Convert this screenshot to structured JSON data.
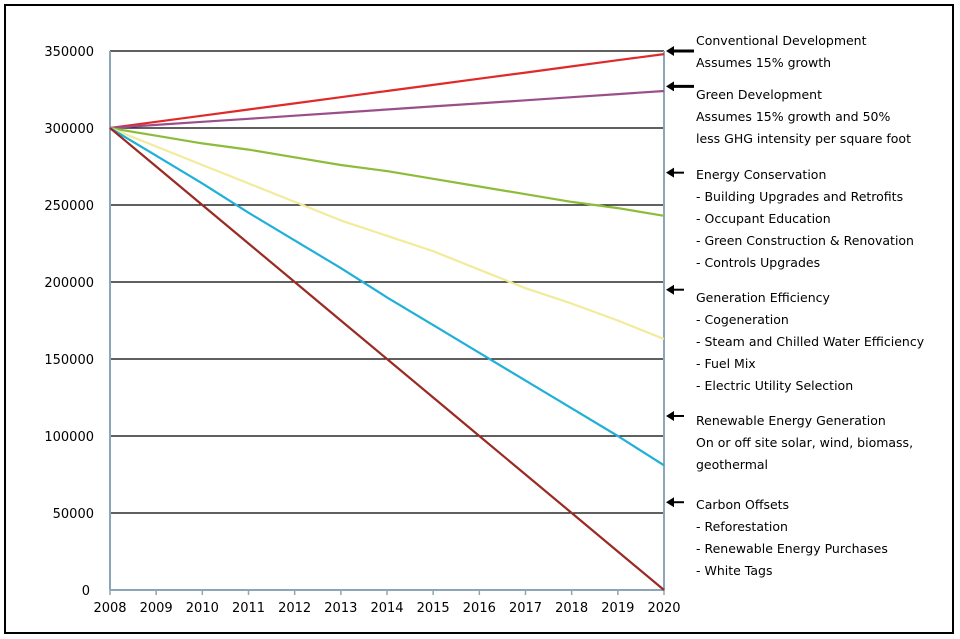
{
  "chart_data": {
    "type": "line",
    "x": [
      2008,
      2009,
      2010,
      2011,
      2012,
      2013,
      2014,
      2015,
      2016,
      2017,
      2018,
      2019,
      2020
    ],
    "xticks": [
      "2008",
      "2009",
      "2010",
      "2011",
      "2012",
      "2013",
      "2014",
      "2015",
      "2016",
      "2017",
      "2018",
      "2019",
      "2020"
    ],
    "yticks": [
      "0",
      "50000",
      "100000",
      "150000",
      "200000",
      "250000",
      "300000",
      "350000"
    ],
    "ylim": [
      0,
      350000
    ],
    "xlim": [
      2008,
      2020
    ],
    "grid": "horizontal",
    "series": [
      {
        "color": "#e02a2a",
        "values": [
          300000,
          304000,
          308000,
          312000,
          316000,
          320000,
          324000,
          328000,
          332000,
          336000,
          340000,
          344000,
          348000
        ]
      },
      {
        "color": "#9b4f8a",
        "values": [
          300000,
          302000,
          304000,
          306000,
          308000,
          310000,
          312000,
          314000,
          316000,
          318000,
          320000,
          322000,
          324000
        ]
      },
      {
        "color": "#8cbc3a",
        "values": [
          300000,
          295000,
          290000,
          286000,
          281000,
          276000,
          272000,
          267000,
          262000,
          257000,
          252000,
          248000,
          243000
        ]
      },
      {
        "color": "#f2eb9c",
        "values": [
          300000,
          288000,
          276000,
          264000,
          252000,
          240000,
          230000,
          220000,
          208000,
          196000,
          186000,
          175000,
          163000
        ]
      },
      {
        "color": "#1fb0d8",
        "values": [
          300000,
          282000,
          264000,
          245000,
          227000,
          209000,
          190000,
          172000,
          154000,
          136000,
          118000,
          100000,
          81000
        ]
      },
      {
        "color": "#9a2a24",
        "values": [
          300000,
          275000,
          250000,
          225000,
          200000,
          175000,
          150000,
          125000,
          100000,
          75000,
          50000,
          25000,
          0
        ]
      }
    ],
    "annotations": [
      {
        "arrow_value": 350000,
        "lines": [
          "Conventional Development",
          "Assumes 15% growth"
        ]
      },
      {
        "arrow_value": 327000,
        "lines": [
          "Green Development",
          "Assumes 15% growth and 50%",
          "less GHG intensity per square foot"
        ]
      },
      {
        "arrow_value": 271000,
        "lines": [
          "Energy Conservation",
          "- Building Upgrades and Retrofits",
          "- Occupant Education",
          "- Green Construction & Renovation",
          "- Controls Upgrades"
        ]
      },
      {
        "arrow_value": 195000,
        "lines": [
          "Generation Efficiency",
          "- Cogeneration",
          "- Steam and Chilled Water Efficiency",
          "- Fuel Mix",
          "- Electric Utility Selection"
        ]
      },
      {
        "arrow_value": 113000,
        "lines": [
          "Renewable Energy Generation",
          "On or off site solar, wind, biomass,",
          "geothermal"
        ]
      },
      {
        "arrow_value": 57000,
        "lines": [
          "Carbon Offsets",
          "-  Reforestation",
          "- Renewable Energy Purchases",
          "- White Tags"
        ]
      }
    ]
  }
}
